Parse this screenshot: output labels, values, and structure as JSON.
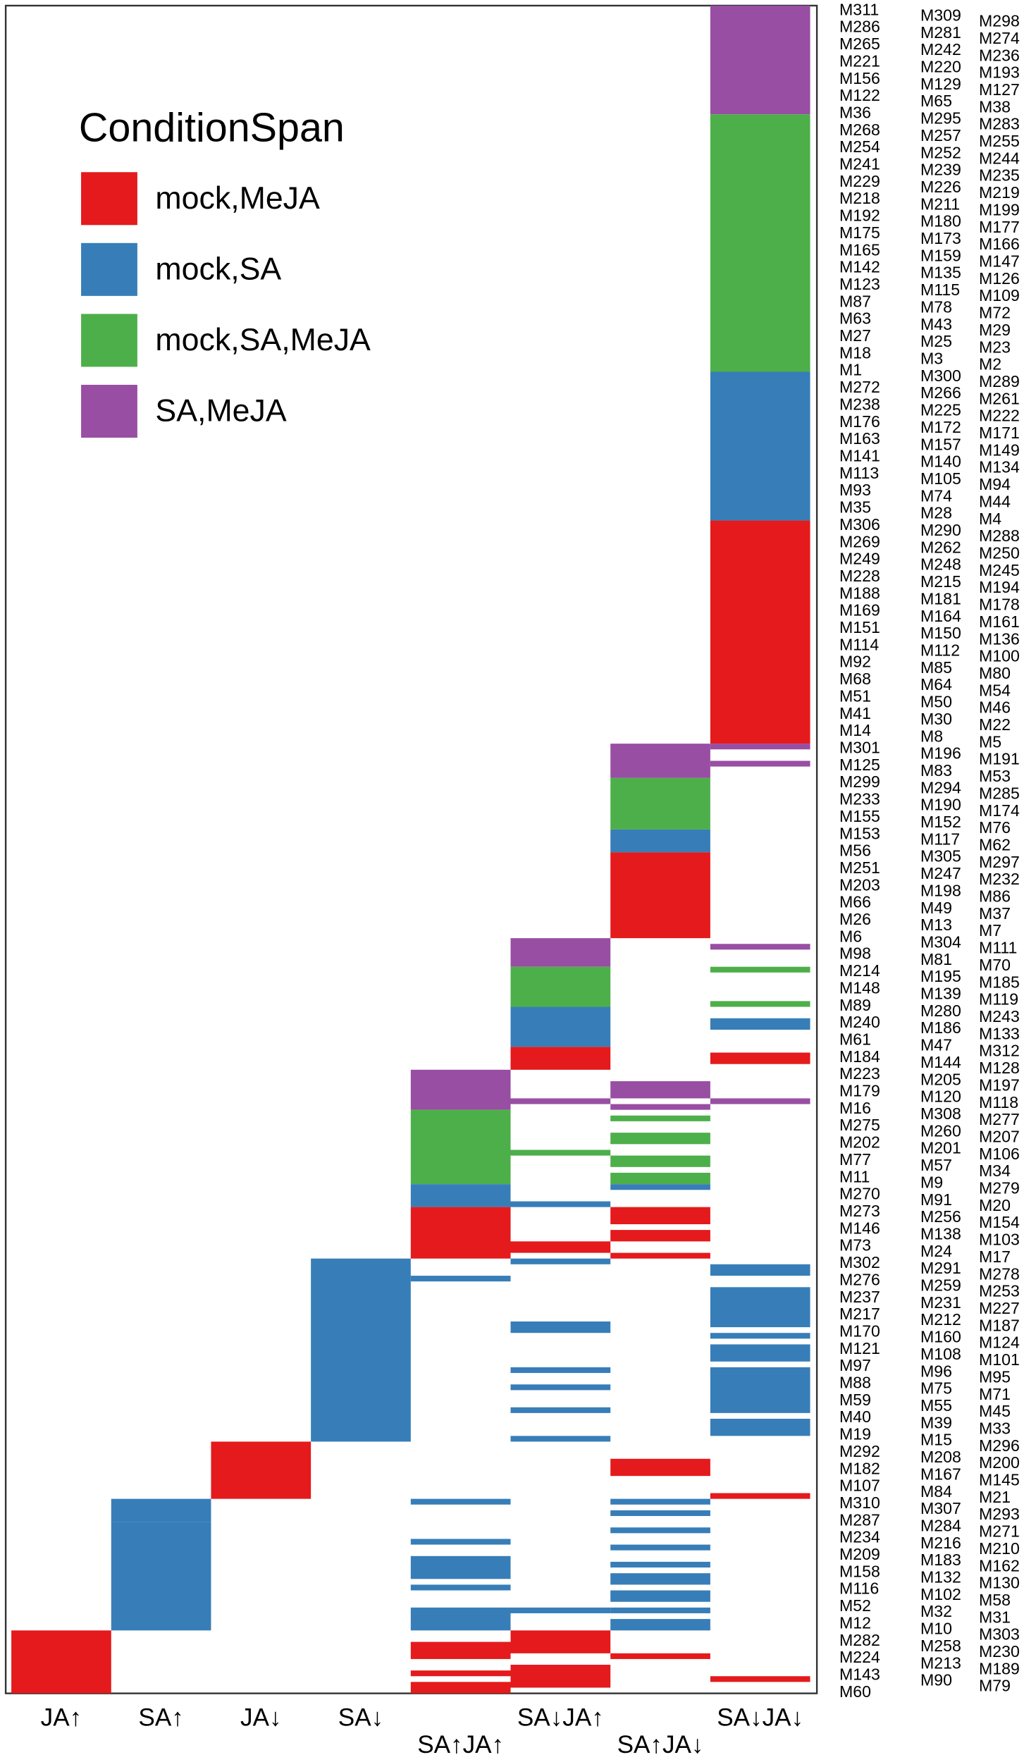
{
  "chart_data": {
    "type": "heatmap",
    "legend_title": "ConditionSpan",
    "conditions": [
      {
        "name": "mock,MeJA",
        "color": "#e41a1c"
      },
      {
        "name": "mock,SA",
        "color": "#377eb8"
      },
      {
        "name": "mock,SA,MeJA",
        "color": "#4daf4a"
      },
      {
        "name": "SA,MeJA",
        "color": "#984ea3"
      }
    ],
    "module_labels": [
      [
        "M311",
        "M286",
        "M265",
        "M221",
        "M156",
        "M122",
        "M36",
        "M268",
        "M254",
        "M241",
        "M229",
        "M218",
        "M192",
        "M175",
        "M165",
        "M142",
        "M123",
        "M87",
        "M63",
        "M27",
        "M18",
        "M1",
        "M272",
        "M238",
        "M176",
        "M163",
        "M141",
        "M113",
        "M93",
        "M35",
        "M306",
        "M269",
        "M249",
        "M228",
        "M188",
        "M169",
        "M151",
        "M114",
        "M92",
        "M68",
        "M51",
        "M41",
        "M14",
        "M301",
        "M125",
        "M299",
        "M233",
        "M155",
        "M153",
        "M56",
        "M251",
        "M203",
        "M66",
        "M26",
        "M6",
        "M98",
        "M214",
        "M148",
        "M89",
        "M240",
        "M61",
        "M184",
        "M223",
        "M179",
        "M16",
        "M275",
        "M202",
        "M77",
        "M11",
        "M270",
        "M273",
        "M146",
        "M73",
        "M302",
        "M276",
        "M237",
        "M217",
        "M170",
        "M121",
        "M97",
        "M88",
        "M59",
        "M40",
        "M19",
        "M292",
        "M182",
        "M107",
        "M310",
        "M287",
        "M234",
        "M209",
        "M158",
        "M116",
        "M52",
        "M12",
        "M282",
        "M224",
        "M143",
        "M60"
      ],
      [
        "M309",
        "M281",
        "M242",
        "M220",
        "M129",
        "M65",
        "M295",
        "M257",
        "M252",
        "M239",
        "M226",
        "M211",
        "M180",
        "M173",
        "M159",
        "M135",
        "M115",
        "M78",
        "M43",
        "M25",
        "M3",
        "M300",
        "M266",
        "M225",
        "M172",
        "M157",
        "M140",
        "M105",
        "M74",
        "M28",
        "M290",
        "M262",
        "M248",
        "M215",
        "M181",
        "M164",
        "M150",
        "M112",
        "M85",
        "M64",
        "M50",
        "M30",
        "M8",
        "M196",
        "M83",
        "M294",
        "M190",
        "M152",
        "M117",
        "M305",
        "M247",
        "M198",
        "M49",
        "M13",
        "M304",
        "M81",
        "M195",
        "M139",
        "M280",
        "M186",
        "M47",
        "M144",
        "M205",
        "M120",
        "M308",
        "M260",
        "M201",
        "M57",
        "M9",
        "M91",
        "M256",
        "M138",
        "M24",
        "M291",
        "M259",
        "M231",
        "M212",
        "M160",
        "M108",
        "M96",
        "M75",
        "M55",
        "M39",
        "M15",
        "M208",
        "M167",
        "M84",
        "M307",
        "M284",
        "M216",
        "M183",
        "M132",
        "M102",
        "M32",
        "M10",
        "M258",
        "M213",
        "M90"
      ],
      [
        "M298",
        "M274",
        "M236",
        "M193",
        "M127",
        "M38",
        "M283",
        "M255",
        "M244",
        "M235",
        "M219",
        "M199",
        "M177",
        "M166",
        "M147",
        "M126",
        "M109",
        "M72",
        "M29",
        "M23",
        "M2",
        "M289",
        "M261",
        "M222",
        "M171",
        "M149",
        "M134",
        "M94",
        "M44",
        "M4",
        "M288",
        "M250",
        "M245",
        "M194",
        "M178",
        "M161",
        "M136",
        "M100",
        "M80",
        "M54",
        "M46",
        "M22",
        "M5",
        "M191",
        "M53",
        "M285",
        "M174",
        "M76",
        "M62",
        "M297",
        "M232",
        "M86",
        "M37",
        "M7",
        "M111",
        "M70",
        "M185",
        "M119",
        "M243",
        "M133",
        "M312",
        "M128",
        "M197",
        "M118",
        "M277",
        "M207",
        "M106",
        "M34",
        "M279",
        "M20",
        "M154",
        "M103",
        "M17",
        "M278",
        "M253",
        "M227",
        "M187",
        "M124",
        "M101",
        "M95",
        "M71",
        "M45",
        "M33",
        "M296",
        "M200",
        "M145",
        "M21",
        "M293",
        "M271",
        "M210",
        "M162",
        "M130",
        "M58",
        "M31",
        "M303",
        "M230",
        "M189",
        "M79"
      ]
    ],
    "columns": [
      {
        "name": "JA↑",
        "runs": [
          [
            284,
            11,
            0
          ]
        ]
      },
      {
        "name": "SA↑",
        "runs": [
          [
            261,
            4,
            1
          ],
          [
            265,
            19,
            1
          ]
        ]
      },
      {
        "name": "JA↓",
        "runs": [
          [
            251,
            10,
            0
          ]
        ]
      },
      {
        "name": "SA↓",
        "runs": [
          [
            219,
            32,
            1
          ]
        ]
      },
      {
        "name": "SA↑JA↑",
        "runs": [
          [
            186,
            7,
            3
          ],
          [
            193,
            13,
            2
          ],
          [
            206,
            4,
            1
          ],
          [
            210,
            9,
            0
          ],
          [
            222,
            1,
            1
          ],
          [
            261,
            1,
            1
          ],
          [
            268,
            1,
            1
          ],
          [
            271,
            4,
            1
          ],
          [
            276,
            1,
            1
          ],
          [
            280,
            4,
            1
          ],
          [
            286,
            3,
            0
          ],
          [
            291,
            1,
            0
          ],
          [
            293,
            2,
            0
          ]
        ]
      },
      {
        "name": "SA↓JA↑",
        "runs": [
          [
            163,
            5,
            3
          ],
          [
            168,
            7,
            2
          ],
          [
            175,
            7,
            1
          ],
          [
            182,
            4,
            0
          ],
          [
            191,
            1,
            3
          ],
          [
            200,
            1,
            2
          ],
          [
            209,
            1,
            1
          ],
          [
            216,
            2,
            0
          ],
          [
            219,
            1,
            1
          ],
          [
            230,
            2,
            1
          ],
          [
            238,
            1,
            1
          ],
          [
            241,
            1,
            1
          ],
          [
            245,
            1,
            1
          ],
          [
            250,
            1,
            1
          ],
          [
            280,
            1,
            1
          ],
          [
            284,
            4,
            0
          ],
          [
            290,
            4,
            0
          ]
        ]
      },
      {
        "name": "SA↑JA↓",
        "runs": [
          [
            129,
            6,
            3
          ],
          [
            135,
            9,
            2
          ],
          [
            144,
            4,
            1
          ],
          [
            148,
            15,
            0
          ],
          [
            188,
            3,
            3
          ],
          [
            192,
            1,
            3
          ],
          [
            194,
            1,
            2
          ],
          [
            197,
            2,
            2
          ],
          [
            201,
            2,
            2
          ],
          [
            204,
            2,
            2
          ],
          [
            206,
            1,
            1
          ],
          [
            210,
            3,
            0
          ],
          [
            214,
            2,
            0
          ],
          [
            218,
            1,
            0
          ],
          [
            254,
            3,
            0
          ],
          [
            261,
            1,
            1
          ],
          [
            263,
            1,
            1
          ],
          [
            266,
            1,
            1
          ],
          [
            269,
            1,
            1
          ],
          [
            272,
            1,
            1
          ],
          [
            274,
            2,
            1
          ],
          [
            277,
            2,
            1
          ],
          [
            280,
            1,
            1
          ],
          [
            282,
            2,
            1
          ],
          [
            288,
            1,
            0
          ]
        ]
      },
      {
        "name": "SA↓JA↓",
        "runs": [
          [
            0,
            19,
            3
          ],
          [
            19,
            45,
            2
          ],
          [
            64,
            26,
            1
          ],
          [
            90,
            39,
            0
          ],
          [
            129,
            1,
            3
          ],
          [
            132,
            1,
            3
          ],
          [
            164,
            1,
            3
          ],
          [
            168,
            1,
            2
          ],
          [
            174,
            1,
            2
          ],
          [
            177,
            2,
            1
          ],
          [
            183,
            2,
            0
          ],
          [
            191,
            1,
            3
          ],
          [
            220,
            2,
            1
          ],
          [
            224,
            7,
            1
          ],
          [
            232,
            1,
            1
          ],
          [
            234,
            3,
            1
          ],
          [
            238,
            8,
            1
          ],
          [
            247,
            3,
            1
          ],
          [
            260,
            1,
            0
          ],
          [
            292,
            1,
            0
          ]
        ]
      }
    ]
  }
}
